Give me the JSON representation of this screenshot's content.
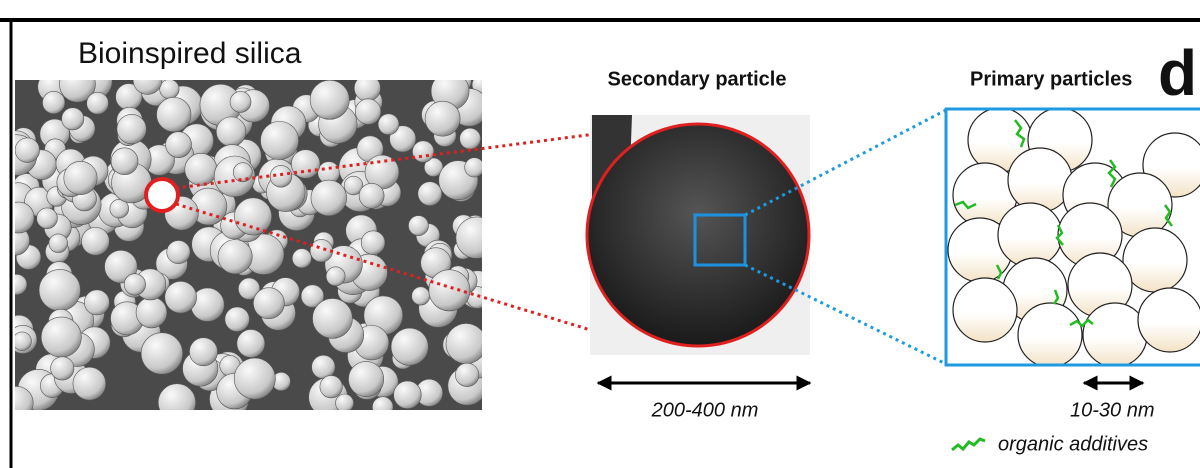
{
  "figure": {
    "panel_label": "d",
    "title": "Bioinspired silica",
    "secondary": {
      "label": "Secondary particle",
      "size": "200-400 nm"
    },
    "primary": {
      "label": "Primary particles",
      "size": "10-30 nm",
      "legend": "organic additives"
    }
  }
}
